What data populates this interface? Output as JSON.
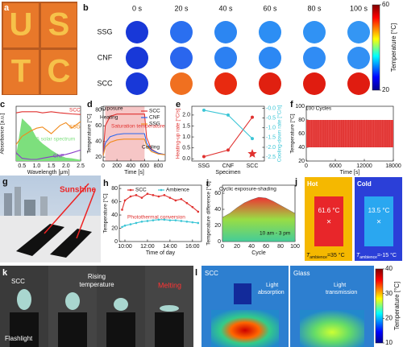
{
  "panels": {
    "a": {
      "label": "a",
      "letters": [
        "U",
        "S",
        "T",
        "C"
      ]
    },
    "b": {
      "label": "b",
      "times": [
        "0 s",
        "20 s",
        "40 s",
        "60 s",
        "80 s",
        "100 s"
      ],
      "rows": [
        {
          "name": "SSG",
          "colors": [
            "#1838d8",
            "#2a6ff0",
            "#2c86f2",
            "#2c8ef4",
            "#3092f4",
            "#3496f4"
          ]
        },
        {
          "name": "CNF",
          "colors": [
            "#1838d8",
            "#2a66ee",
            "#2c80f2",
            "#2c88f4",
            "#308cf4",
            "#3290f4"
          ]
        },
        {
          "name": "SCC",
          "colors": [
            "#1838d8",
            "#f07020",
            "#e82a10",
            "#e02010",
            "#e01c10",
            "#e01c10"
          ]
        }
      ],
      "colorbar": {
        "label": "Temperature [°C]",
        "lim": [
          20,
          60
        ],
        "ticks": [
          20,
          60
        ]
      }
    },
    "c": {
      "label": "c",
      "type": "line",
      "xlabel": "Wavelength [μm]",
      "ylabel": "Absorbance [a.u.]",
      "xlim": [
        0.3,
        2.5
      ],
      "xticks": [
        0.5,
        {
          "value": 1,
          "label": "1.0"
        },
        1.5,
        {
          "value": 2,
          "label": "2.0"
        },
        2.5
      ],
      "ylim": [
        0,
        1
      ],
      "x": [
        0.3,
        0.5,
        0.8,
        1.0,
        1.2,
        1.5,
        1.8,
        2.0,
        2.2,
        2.5
      ],
      "series": [
        {
          "name": "AM1.5 solar spectrum",
          "color": "#7ddf7d",
          "fill": true,
          "values": [
            0.1,
            0.78,
            0.62,
            0.42,
            0.32,
            0.2,
            0.1,
            0.06,
            0.05,
            0.02
          ]
        },
        {
          "name": "SCC",
          "color": "#e0312f",
          "values": [
            0.88,
            0.9,
            0.9,
            0.9,
            0.88,
            0.9,
            0.88,
            0.87,
            0.86,
            0.85
          ]
        },
        {
          "name": "SSG",
          "color": "#f08a1c",
          "values": [
            0.3,
            0.45,
            0.55,
            0.6,
            0.62,
            0.5,
            0.65,
            0.7,
            0.6,
            0.72
          ]
        },
        {
          "name": "CNF",
          "color": "#8a3cc8",
          "values": [
            0.15,
            0.05,
            0.03,
            0.03,
            0.05,
            0.08,
            0.1,
            0.12,
            0.15,
            0.2
          ]
        }
      ]
    },
    "d": {
      "label": "d",
      "type": "line",
      "xlabel": "Time [s]",
      "ylabel": "Temperature [°C]",
      "xlim": [
        0,
        900
      ],
      "xticks": [
        0,
        200,
        400,
        600,
        800
      ],
      "ylim": [
        15,
        85
      ],
      "yticks": [
        20,
        40,
        60,
        80
      ],
      "exposure": [
        30,
        600
      ],
      "x": [
        0,
        30,
        100,
        200,
        300,
        400,
        500,
        600,
        630,
        700,
        800,
        900
      ],
      "notes": [
        "Exposure",
        "Heating",
        "Saturation temperature",
        "Cooling"
      ],
      "series": [
        {
          "name": "SCC",
          "color": "#e0312f",
          "values": [
            22,
            60,
            72,
            75,
            75,
            75,
            75,
            75,
            45,
            30,
            25,
            23
          ]
        },
        {
          "name": "CNF",
          "color": "#2a66ee",
          "values": [
            22,
            38,
            46,
            49,
            50,
            50,
            50,
            50,
            38,
            29,
            25,
            23
          ]
        },
        {
          "name": "SSG",
          "color": "#f08a1c",
          "values": [
            22,
            33,
            39,
            42,
            43,
            43,
            43,
            43,
            34,
            27,
            24,
            23
          ]
        }
      ]
    },
    "e": {
      "label": "e",
      "type": "line",
      "xlabel": "Specimen",
      "ylabel": "Heating-up rate [°C/s]",
      "y2label": "Cooling-down rate [°C/s]",
      "categories": [
        "SSG",
        "CNF",
        "SCC"
      ],
      "ylim": [
        -0.1,
        2.4
      ],
      "yticks": [
        {
          "value": 0,
          "label": "0.0"
        },
        0.5,
        {
          "value": 1,
          "label": "1.0"
        },
        1.5,
        {
          "value": 2,
          "label": "2.0"
        }
      ],
      "y2lim": [
        -2.7,
        0.1
      ],
      "y2ticks": [
        {
          "value": 0,
          "label": "-0.0"
        },
        -0.5,
        {
          "value": -1,
          "label": "-1.0"
        },
        -1.5,
        {
          "value": -2,
          "label": "-2.0"
        },
        -2.5
      ],
      "series": [
        {
          "color": "#e0312f",
          "values": [
            0.1,
            0.4,
            1.9
          ]
        },
        {
          "color": "#3cc6d6",
          "axis": "y2",
          "values": [
            -0.1,
            -0.35,
            -1.55
          ]
        }
      ]
    },
    "f": {
      "label": "f",
      "type": "band",
      "xlabel": "Time [s]",
      "ylabel": "Temperature [°C]",
      "xlim": [
        0,
        18000
      ],
      "xticks": [
        0,
        6000,
        12000,
        18000
      ],
      "ylim": [
        20,
        100
      ],
      "yticks": [
        20,
        40,
        60,
        80,
        100
      ],
      "band": [
        40,
        80
      ],
      "notes": [
        "100 Cycles"
      ],
      "color": "#e0312f"
    },
    "g": {
      "label": "g",
      "notes": [
        "Sunshine",
        "SCC"
      ]
    },
    "h": {
      "label": "h",
      "type": "line",
      "xlabel": "Time of day",
      "ylabel": "Temperature [°C]",
      "xlim": [
        9.5,
        16.8
      ],
      "xticks": [
        {
          "value": 10,
          "label": "10:00"
        },
        {
          "value": 12,
          "label": "12:00"
        },
        {
          "value": 14,
          "label": "14:00"
        },
        {
          "value": 16,
          "label": "16:00"
        }
      ],
      "ylim": [
        0,
        85
      ],
      "yticks": [
        0,
        20,
        40,
        60,
        80
      ],
      "notes": [
        "Photothermal conversion"
      ],
      "x": [
        9.75,
        10,
        10.5,
        11,
        11.5,
        12,
        12.5,
        13,
        13.5,
        14,
        14.5,
        15,
        15.5,
        16,
        16.5
      ],
      "series": [
        {
          "name": "SCC",
          "color": "#e0312f",
          "values": [
            48,
            62,
            68,
            70,
            66,
            72,
            70,
            68,
            70,
            66,
            62,
            64,
            58,
            52,
            45
          ]
        },
        {
          "name": "Ambience",
          "color": "#3cc6d6",
          "values": [
            22,
            24,
            26,
            28,
            30,
            31,
            32,
            33,
            33,
            32,
            32,
            31,
            30,
            29,
            28
          ]
        }
      ]
    },
    "i": {
      "label": "i",
      "type": "area",
      "xlabel": "Cycle",
      "ylabel": "Temperature difference [°C]",
      "xlim": [
        0,
        100
      ],
      "xticks": [
        0,
        20,
        40,
        60,
        80,
        100
      ],
      "ylim": [
        0,
        70
      ],
      "yticks": [
        0,
        20,
        40,
        60
      ],
      "notes": [
        "Cyclic exposure-shading",
        "10 am - 3 pm"
      ],
      "x": [
        0,
        10,
        20,
        30,
        40,
        50,
        60,
        70,
        80,
        90,
        100
      ],
      "values": [
        30,
        35,
        42,
        48,
        52,
        55,
        54,
        50,
        45,
        40,
        35
      ]
    },
    "j": {
      "label": "j",
      "hot": {
        "title": "Hot",
        "reading": "61.6 °C",
        "ambient": {
          "symbol": "T",
          "sub": "ambience",
          "value": "=35 °C"
        }
      },
      "cold": {
        "title": "Cold",
        "reading": "13.5 °C",
        "ambient": {
          "symbol": "T",
          "sub": "ambience",
          "value": "=-15 °C"
        }
      }
    },
    "k": {
      "label": "k",
      "scc": "SCC",
      "rising": [
        "Rising",
        "temperature"
      ],
      "melting": "Melting",
      "light": "Flashlight"
    },
    "l": {
      "label": "l",
      "left": "SCC",
      "right": "Glass",
      "absorption": [
        "Light",
        "absorption"
      ],
      "transmission": [
        "Light",
        "transmission"
      ],
      "colorbar": {
        "label": "Temperature [°C]",
        "lim": [
          10,
          40
        ],
        "ticks": [
          10,
          20,
          30,
          40
        ]
      }
    }
  }
}
